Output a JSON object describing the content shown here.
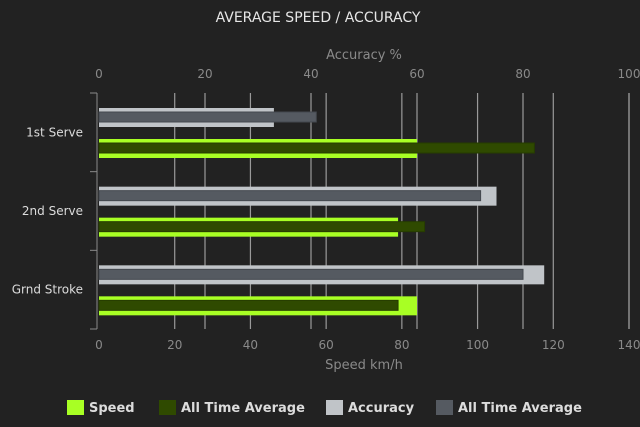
{
  "chart_data": {
    "type": "bar",
    "orientation": "horizontal",
    "title": "AVERAGE SPEED / ACCURACY",
    "categories": [
      "1st Serve",
      "2nd Serve",
      "Grnd Stroke"
    ],
    "x_bottom": {
      "label": "Speed km/h",
      "lim": [
        0,
        140
      ],
      "ticks": [
        "0",
        "20",
        "40",
        "60",
        "80",
        "100",
        "120",
        "140"
      ]
    },
    "x_top": {
      "label": "Accuracy %",
      "lim": [
        0,
        100
      ],
      "ticks": [
        "0",
        "20",
        "40",
        "60",
        "80",
        "100"
      ]
    },
    "grid": true,
    "legend_position": "bottom",
    "series": [
      {
        "name": "Speed",
        "axis": "bottom",
        "color": "#a8ff24",
        "values": [
          84,
          79,
          84
        ]
      },
      {
        "name": "All Time Average",
        "axis": "bottom",
        "color": "#2f4a00",
        "values": [
          115,
          86,
          79
        ]
      },
      {
        "name": "Accuracy",
        "axis": "top",
        "color": "#c0c4c8",
        "values": [
          33,
          75,
          84
        ]
      },
      {
        "name": "All Time Average",
        "axis": "top",
        "color": "#555a61",
        "values": [
          41,
          72,
          80
        ]
      }
    ]
  }
}
